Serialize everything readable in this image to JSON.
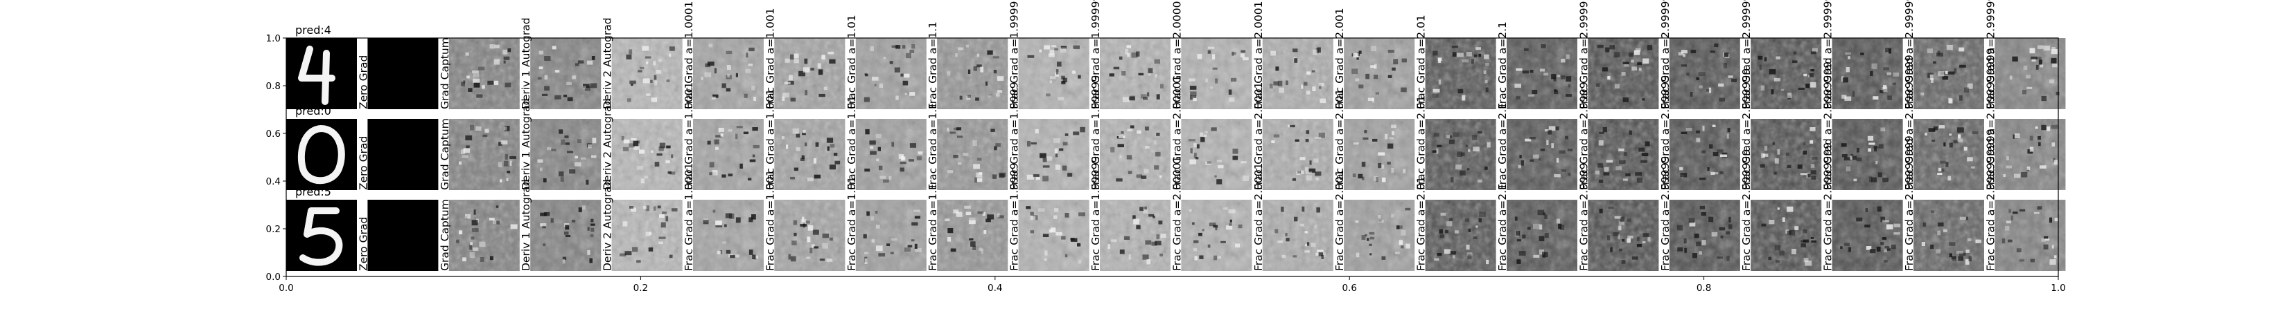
{
  "chart_data": {
    "type": "image_grid",
    "xlim": [
      0.0,
      1.0
    ],
    "ylim": [
      0.0,
      1.0
    ],
    "xticks": [
      "0.0",
      "0.2",
      "0.4",
      "0.6",
      "0.8",
      "1.0"
    ],
    "yticks": [
      "0.0",
      "0.2",
      "0.4",
      "0.6",
      "0.8",
      "1.0"
    ],
    "rows": [
      {
        "prediction": "pred:4",
        "digit": "4"
      },
      {
        "prediction": "pred:0",
        "digit": "0"
      },
      {
        "prediction": "pred:5",
        "digit": "5"
      }
    ],
    "columns": [
      "Zero Grad",
      "Grad Captum",
      "Deriv 1 Autograd",
      "Deriv 2 Autograd",
      "Frac Grad a=1.0001",
      "Frac Grad a=1.001",
      "Frac Grad a=1.01",
      "Frac Grad a=1.1",
      "Frac Grad a=1.9999",
      "Frac Grad a=1.99999",
      "Frac Grad a=2.00001",
      "Frac Grad a=2.0001",
      "Frac Grad a=2.001",
      "Frac Grad a=2.01",
      "Frac Grad a=2.1",
      "Frac Grad a=2.9999",
      "Frac Grad a=2.99999",
      "Frac Grad a=2.999999",
      "Frac Grad a=2.9999999",
      "Frac Grad a=2.99999999",
      "Frac Grad a=2.999999999"
    ],
    "panel_tone": [
      0.55,
      0.5,
      0.5,
      0.72,
      0.64,
      0.64,
      0.62,
      0.58,
      0.7,
      0.7,
      0.7,
      0.68,
      0.62,
      0.32,
      0.32,
      0.3,
      0.3,
      0.3,
      0.3,
      0.38,
      0.5
    ],
    "colormap": "gray"
  }
}
